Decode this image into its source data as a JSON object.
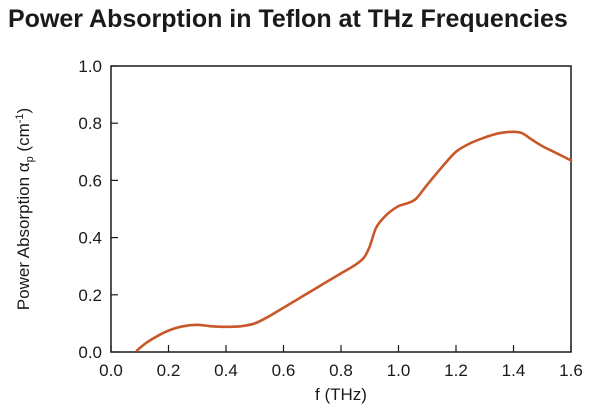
{
  "chart_data": {
    "type": "line",
    "title": "Power Absorption in Teflon at THz Frequencies",
    "xlabel": "f (THz)",
    "ylabel": {
      "prefix": "Power Absorption ",
      "symbol": "α",
      "subscript": "p",
      "unit_open": " (cm",
      "superscript": "-1",
      "unit_close": ")"
    },
    "xlim": [
      0.0,
      1.6
    ],
    "ylim": [
      0.0,
      1.0
    ],
    "x_ticks": [
      "0.0",
      "0.2",
      "0.4",
      "0.6",
      "0.8",
      "1.0",
      "1.2",
      "1.4",
      "1.6"
    ],
    "y_ticks": [
      "0.0",
      "0.2",
      "0.4",
      "0.6",
      "0.8",
      "1.0"
    ],
    "grid": false,
    "series": [
      {
        "color": "#c8582a",
        "x": [
          0.09,
          0.12,
          0.16,
          0.2,
          0.25,
          0.3,
          0.35,
          0.4,
          0.45,
          0.5,
          0.55,
          0.6,
          0.65,
          0.7,
          0.75,
          0.8,
          0.85,
          0.88,
          0.9,
          0.92,
          0.94,
          0.97,
          1.0,
          1.03,
          1.06,
          1.1,
          1.15,
          1.2,
          1.25,
          1.3,
          1.35,
          1.4,
          1.43,
          1.46,
          1.5,
          1.55,
          1.6
        ],
        "y": [
          0.005,
          0.03,
          0.055,
          0.075,
          0.09,
          0.095,
          0.09,
          0.088,
          0.09,
          0.1,
          0.125,
          0.155,
          0.185,
          0.215,
          0.245,
          0.275,
          0.305,
          0.33,
          0.37,
          0.43,
          0.46,
          0.49,
          0.51,
          0.52,
          0.535,
          0.585,
          0.645,
          0.7,
          0.73,
          0.75,
          0.765,
          0.77,
          0.765,
          0.745,
          0.72,
          0.695,
          0.67
        ]
      }
    ]
  }
}
